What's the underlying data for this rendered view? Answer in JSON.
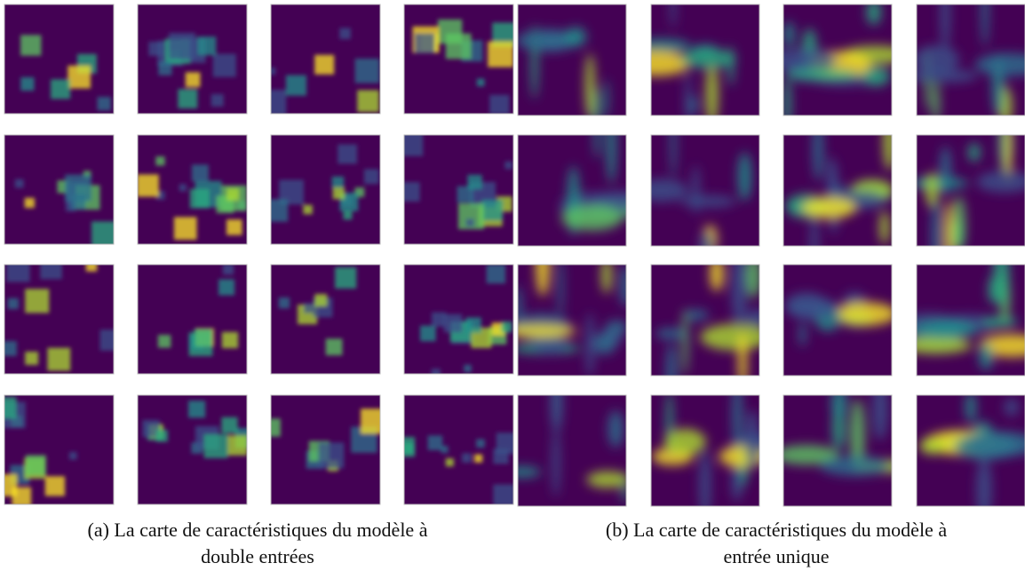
{
  "captions": [
    {
      "line1": "(a) La carte de caractéristiques du modèle à",
      "line2": "double entrées"
    },
    {
      "line1": "(b) La carte de caractéristiques du modèle à",
      "line2": "entrée unique"
    }
  ]
}
